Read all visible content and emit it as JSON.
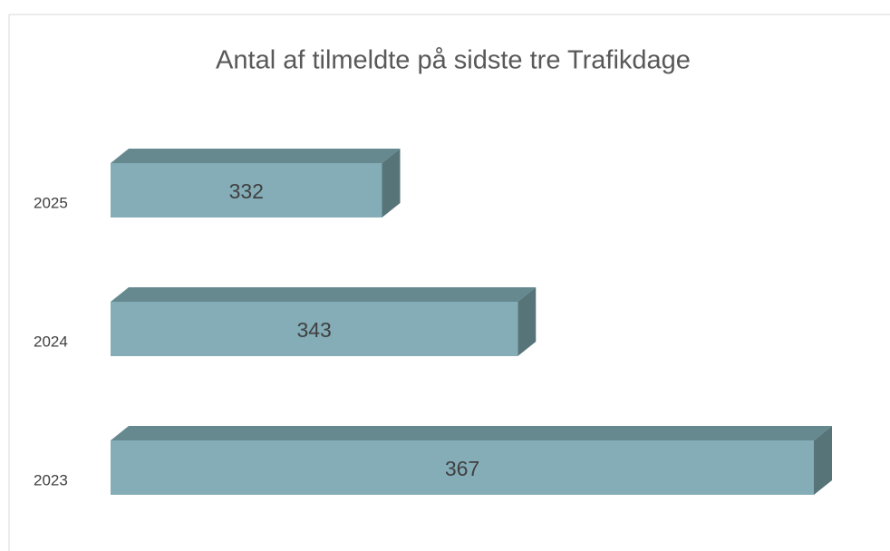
{
  "chart_data": {
    "type": "bar3d_horizontal",
    "title": "Antal af tilmeldte på sidste tre Trafikdage",
    "categories": [
      "2025",
      "2024",
      "2023"
    ],
    "values": [
      332,
      343,
      367
    ],
    "color": "#84adb8",
    "xlim": [
      310,
      367
    ]
  }
}
